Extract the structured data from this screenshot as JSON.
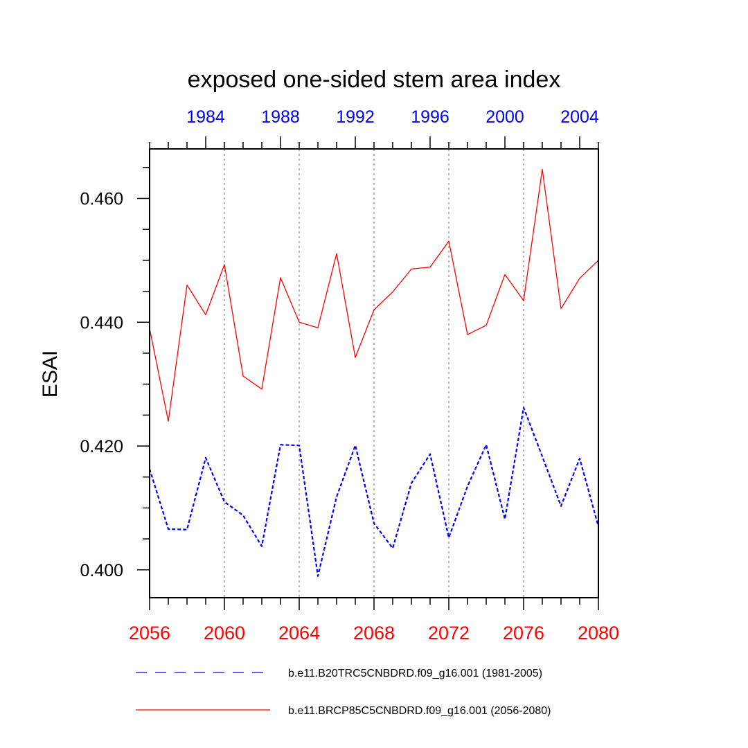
{
  "chart_data": {
    "type": "line",
    "title": "exposed one-sided stem area index",
    "ylabel": "ESAI",
    "xlabel": "",
    "ylim": [
      0.3955,
      0.468
    ],
    "xlim": [
      2056,
      2080
    ],
    "x2lim": [
      1981,
      2005
    ],
    "grid": "vertical dotted at major bottom ticks",
    "yticks": [
      {
        "value": 0.4,
        "label": "0.400"
      },
      {
        "value": 0.42,
        "label": "0.420"
      },
      {
        "value": 0.44,
        "label": "0.440"
      },
      {
        "value": 0.46,
        "label": "0.460"
      }
    ],
    "y_minor_step": 0.005,
    "xticks": [
      {
        "value": 2056,
        "label": "2056"
      },
      {
        "value": 2060,
        "label": "2060"
      },
      {
        "value": 2064,
        "label": "2064"
      },
      {
        "value": 2068,
        "label": "2068"
      },
      {
        "value": 2072,
        "label": "2072"
      },
      {
        "value": 2076,
        "label": "2076"
      },
      {
        "value": 2080,
        "label": "2080"
      }
    ],
    "x2ticks": [
      {
        "value": 1984,
        "label": "1984"
      },
      {
        "value": 1988,
        "label": "1988"
      },
      {
        "value": 1992,
        "label": "1992"
      },
      {
        "value": 1996,
        "label": "1996"
      },
      {
        "value": 2000,
        "label": "2000"
      },
      {
        "value": 2004,
        "label": "2004"
      }
    ],
    "x": [
      2056,
      2057,
      2058,
      2059,
      2060,
      2061,
      2062,
      2063,
      2064,
      2065,
      2066,
      2067,
      2068,
      2069,
      2070,
      2071,
      2072,
      2073,
      2074,
      2075,
      2076,
      2077,
      2078,
      2079,
      2080
    ],
    "series": [
      {
        "name": "b.e11.B20TRC5CNBDRD.f09_g16.001 (1981-2005)",
        "color": "#0000ff",
        "style": "dashed",
        "values": [
          0.4163,
          0.4066,
          0.4065,
          0.4181,
          0.411,
          0.4088,
          0.4038,
          0.4202,
          0.4201,
          0.399,
          0.4118,
          0.4201,
          0.4075,
          0.4035,
          0.414,
          0.4187,
          0.4052,
          0.4135,
          0.4202,
          0.4082,
          0.4262,
          0.4183,
          0.4103,
          0.418,
          0.407
        ]
      },
      {
        "name": "b.e11.BRCP85C5CNBDRD.f09_g16.001 (2056-2080)",
        "color": "#ff0000",
        "style": "solid",
        "values": [
          0.439,
          0.424,
          0.446,
          0.4412,
          0.4493,
          0.4313,
          0.4292,
          0.4472,
          0.44,
          0.4391,
          0.4511,
          0.4343,
          0.442,
          0.4449,
          0.4486,
          0.4489,
          0.4531,
          0.438,
          0.4395,
          0.4477,
          0.4435,
          0.4647,
          0.4422,
          0.4471,
          0.45
        ]
      }
    ],
    "legend_position": "bottom"
  }
}
